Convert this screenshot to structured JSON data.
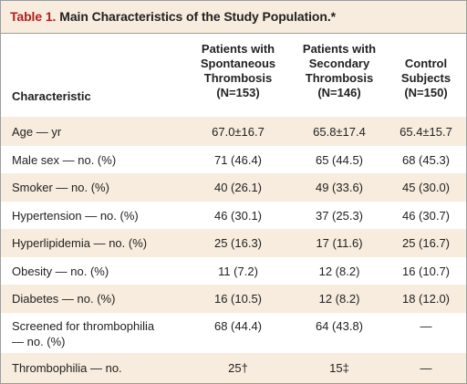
{
  "table": {
    "label": "Table 1.",
    "title": "Main Characteristics of the Study Population.*",
    "columns": {
      "characteristic": "Characteristic",
      "spontaneous": [
        "Patients with",
        "Spontaneous",
        "Thrombosis",
        "(N=153)"
      ],
      "secondary": [
        "Patients with",
        "Secondary",
        "Thrombosis",
        "(N=146)"
      ],
      "control": [
        "Control",
        "Subjects",
        "(N=150)"
      ]
    },
    "rows": [
      {
        "label": [
          "Age — yr"
        ],
        "spontaneous": "67.0±16.7",
        "secondary": "65.8±17.4",
        "control": "65.4±15.7"
      },
      {
        "label": [
          "Male sex — no. (%)"
        ],
        "spontaneous": "71 (46.4)",
        "secondary": "65 (44.5)",
        "control": "68 (45.3)"
      },
      {
        "label": [
          "Smoker — no. (%)"
        ],
        "spontaneous": "40 (26.1)",
        "secondary": "49 (33.6)",
        "control": "45 (30.0)"
      },
      {
        "label": [
          "Hypertension — no. (%)"
        ],
        "spontaneous": "46 (30.1)",
        "secondary": "37 (25.3)",
        "control": "46 (30.7)"
      },
      {
        "label": [
          "Hyperlipidemia — no. (%)"
        ],
        "spontaneous": "25 (16.3)",
        "secondary": "17 (11.6)",
        "control": "25 (16.7)"
      },
      {
        "label": [
          "Obesity — no. (%)"
        ],
        "spontaneous": "11 (7.2)",
        "secondary": "12 (8.2)",
        "control": "16 (10.7)"
      },
      {
        "label": [
          "Diabetes — no. (%)"
        ],
        "spontaneous": "16 (10.5)",
        "secondary": "12 (8.2)",
        "control": "18 (12.0)"
      },
      {
        "label": [
          "Screened for thrombophilia",
          "— no. (%)"
        ],
        "spontaneous": "68 (44.4)",
        "secondary": "64 (43.8)",
        "control": "—"
      },
      {
        "label": [
          "Thrombophilia — no."
        ],
        "spontaneous": "25†",
        "secondary": "15‡",
        "control": "—"
      }
    ]
  }
}
